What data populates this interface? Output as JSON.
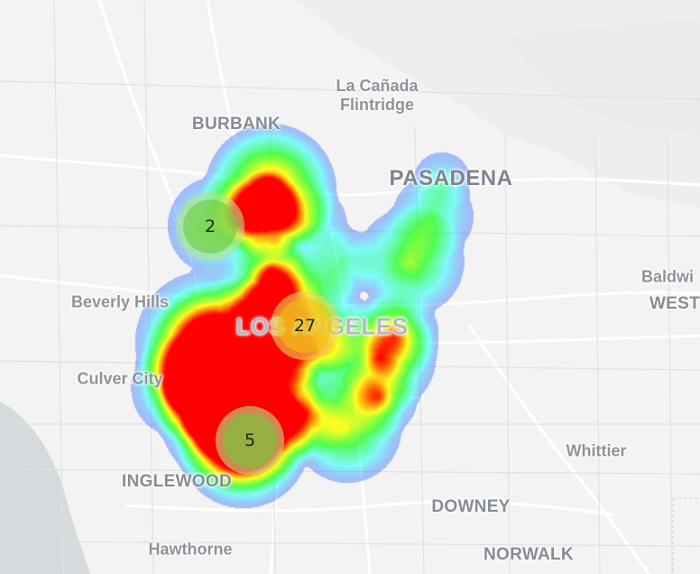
{
  "map": {
    "labels": [
      {
        "id": "la-canada",
        "text": "La Cañada\nFlintridge",
        "cls": "l-small l-two"
      },
      {
        "id": "burbank",
        "text": "BURBANK",
        "cls": "l-city"
      },
      {
        "id": "pasadena",
        "text": "PASADENA",
        "cls": "l-big"
      },
      {
        "id": "beverly-hills",
        "text": "Beverly Hills",
        "cls": "l-small"
      },
      {
        "id": "los-angeles",
        "text": "LOS ANGELES",
        "cls": "l-huge"
      },
      {
        "id": "culver-city",
        "text": "Culver City",
        "cls": "l-small"
      },
      {
        "id": "inglewood",
        "text": "INGLEWOOD",
        "cls": "l-city"
      },
      {
        "id": "downey",
        "text": "DOWNEY",
        "cls": "l-city"
      },
      {
        "id": "whittier",
        "text": "Whittier",
        "cls": "l-small"
      },
      {
        "id": "hawthorne",
        "text": "Hawthorne",
        "cls": "l-small"
      },
      {
        "id": "norwalk",
        "text": "NORWALK",
        "cls": "l-city"
      },
      {
        "id": "baldwin",
        "text": "Baldwi",
        "cls": "l-small"
      },
      {
        "id": "west",
        "text": "WEST",
        "cls": "l-city"
      }
    ],
    "clusters": [
      {
        "id": "burbank-cluster",
        "count": "2",
        "color": "green"
      },
      {
        "id": "downtown-cluster",
        "count": "27",
        "color": "yellow"
      },
      {
        "id": "south-cluster",
        "count": "5",
        "color": "green"
      }
    ],
    "cluster_colors": {
      "green": {
        "ring": "rgba(181,226,140,0.6)",
        "fill": "rgba(110,204,57,0.6)"
      },
      "yellow": {
        "ring": "rgba(241,211,87,0.6)",
        "fill": "rgba(240,194,12,0.6)"
      }
    },
    "heat_colors": [
      "#0000ff",
      "#00ffff",
      "#00ff00",
      "#ffff00",
      "#ff0000"
    ],
    "base_colors": {
      "land": "#f3f3f3",
      "water": "#d5dadd",
      "road": "#ffffff",
      "road_edge": "#dcdcdc",
      "rail": "#cfcfcf"
    }
  }
}
